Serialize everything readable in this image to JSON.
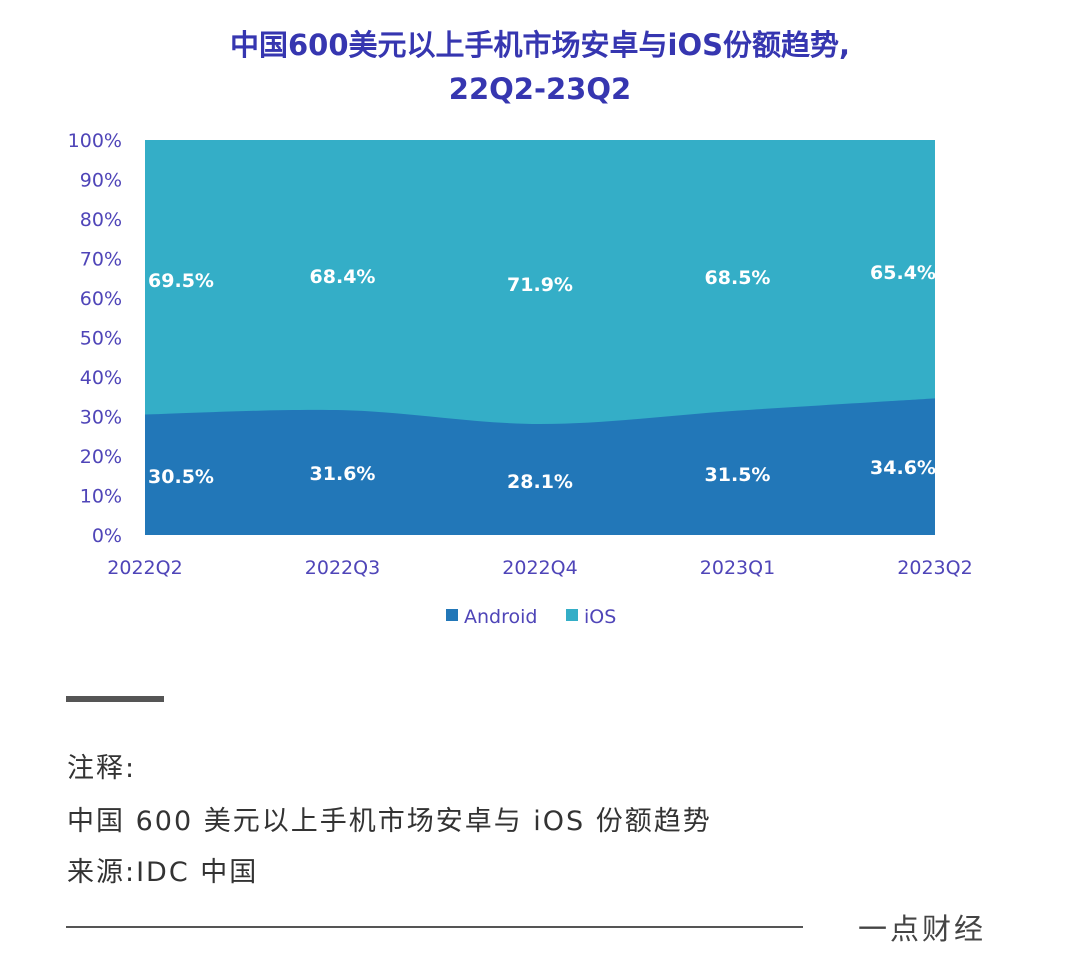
{
  "chart_data": {
    "type": "area",
    "stacked": true,
    "title_line1": "中国600美元以上手机市场安卓与iOS份额趋势,",
    "title_line2": "22Q2-23Q2",
    "categories": [
      "2022Q2",
      "2022Q3",
      "2022Q4",
      "2023Q1",
      "2023Q2"
    ],
    "series": [
      {
        "name": "Android",
        "values": [
          30.5,
          31.6,
          28.1,
          31.5,
          34.6
        ],
        "labels": [
          "30.5%",
          "31.6%",
          "28.1%",
          "31.5%",
          "34.6%"
        ],
        "color": "#2277b8"
      },
      {
        "name": "iOS",
        "values": [
          69.5,
          68.4,
          71.9,
          68.5,
          65.4
        ],
        "labels": [
          "69.5%",
          "68.4%",
          "71.9%",
          "68.5%",
          "65.4%"
        ],
        "color": "#34aec7"
      }
    ],
    "yticks": [
      "0%",
      "10%",
      "20%",
      "30%",
      "40%",
      "50%",
      "60%",
      "70%",
      "80%",
      "90%",
      "100%"
    ],
    "ylim": [
      0,
      100
    ],
    "legend_position": "bottom",
    "axis_color": "#4f45b8"
  },
  "notes": {
    "heading": "注释:",
    "line1": "中国 600 美元以上手机市场安卓与 iOS 份额趋势",
    "source": "来源:IDC 中国",
    "brand": "一点财经"
  }
}
